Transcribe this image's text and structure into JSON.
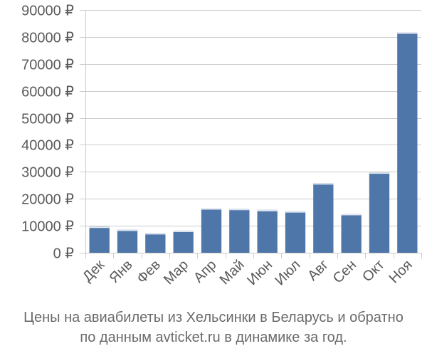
{
  "chart_data": {
    "type": "bar",
    "categories": [
      "Дек",
      "Янв",
      "Фев",
      "Мар",
      "Апр",
      "Май",
      "Июн",
      "Июл",
      "Авг",
      "Сен",
      "Окт",
      "Ноя"
    ],
    "values": [
      9700,
      8600,
      7300,
      8200,
      16500,
      16300,
      15900,
      15400,
      25800,
      14400,
      29800,
      81700
    ],
    "yticks": [
      "0 ₽",
      "10000 ₽",
      "20000 ₽",
      "30000 ₽",
      "40000 ₽",
      "50000 ₽",
      "60000 ₽",
      "70000 ₽",
      "80000 ₽",
      "90000 ₽"
    ],
    "ylim": [
      0,
      90000
    ],
    "grid": true,
    "colors": {
      "bar": "#4e76a8",
      "bar_top": "#dfe7f0",
      "axis": "#cccccc"
    },
    "caption_lines": [
      "Цены на авиабилеты из Хельсинки в Беларусь и обратно",
      "по данным avticket.ru в динамике за год."
    ]
  }
}
